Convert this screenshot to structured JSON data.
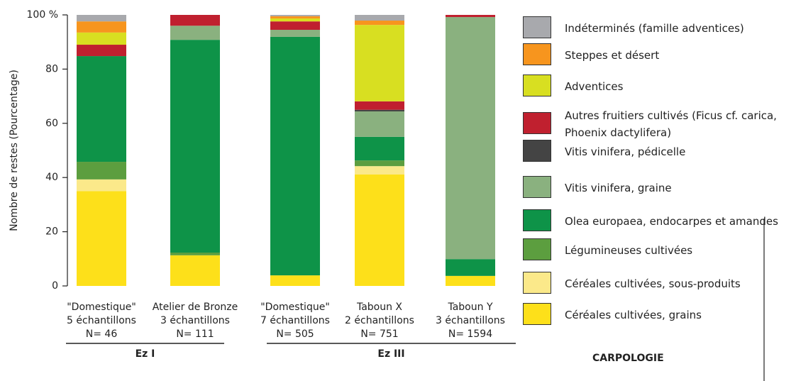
{
  "chart_data": {
    "type": "stacked_bar",
    "y_label": "Nombre de restes (Pourcentage)",
    "categories": [
      [
        "\"Domestique\"",
        "5 échantillons",
        "N= 46"
      ],
      [
        "Atelier de Bronze",
        "3 échantillons",
        "N= 111"
      ],
      [
        "\"Domestique\"",
        "7 échantillons",
        "N= 505"
      ],
      [
        "Taboun X",
        "2 échantillons",
        "N= 751"
      ],
      [
        "Taboun Y",
        "3 échantillons",
        "N= 1594"
      ]
    ],
    "groups": [
      "Ez I",
      "Ez III"
    ],
    "legend_title": "CARPOLOGIE",
    "ylim": [
      0,
      100
    ],
    "yticks": [
      0,
      20,
      40,
      60,
      80,
      {
        "value": 100,
        "label": "100 %"
      }
    ],
    "series": [
      {
        "name": "Céréales cultivées, grains",
        "color": "#fde01a",
        "values": [
          35,
          11.3,
          3.9,
          41.1,
          3.7
        ]
      },
      {
        "name": "Céréales cultivées, sous-produits",
        "color": "#fbe98a",
        "values": [
          4.3,
          0,
          0,
          3.1,
          0
        ]
      },
      {
        "name": "Légumineuses cultivées",
        "color": "#5c9e3f",
        "values": [
          6.5,
          1,
          0,
          2.1,
          0
        ]
      },
      {
        "name": "Olea europaea, endocarpes et amandes",
        "color": "#0e9348",
        "values": [
          39,
          78.5,
          88,
          8.7,
          6.2
        ]
      },
      {
        "name": "Vitis vinifera, graine",
        "color": "#8ab17f",
        "values": [
          0,
          5.2,
          2.6,
          9.4,
          89.3
        ]
      },
      {
        "name": "Vitis vinifera, pédicelle",
        "color": "#444444",
        "values": [
          0,
          0,
          0,
          0.6,
          0
        ]
      },
      {
        "name": "Autres fruitiers cultivés (Ficus cf. carica, Phoenix dactylifera)",
        "color": "#c0202f",
        "values": [
          4.2,
          4,
          3.1,
          3.1,
          0.8
        ]
      },
      {
        "name": "Adventices",
        "color": "#d8df21",
        "values": [
          4.5,
          0,
          1.1,
          28.2,
          0
        ]
      },
      {
        "name": "Steppes et désert",
        "color": "#f7951e",
        "values": [
          4.1,
          0,
          0.8,
          1.6,
          0
        ]
      },
      {
        "name": "Indéterminés (famille adventices)",
        "color": "#a8a9ad",
        "values": [
          2.4,
          0,
          0.5,
          2.1,
          0
        ]
      }
    ]
  }
}
